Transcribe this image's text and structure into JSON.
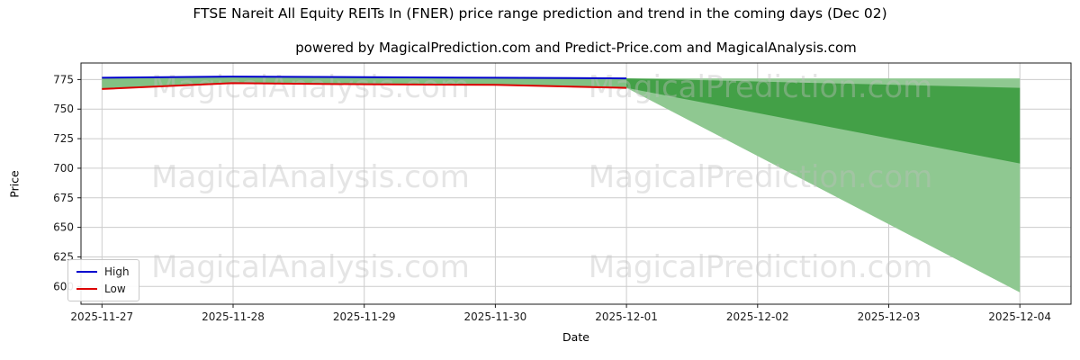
{
  "header": {
    "title": "FTSE Nareit All Equity REITs In (FNER) price range prediction and trend in the coming days (Dec 02)",
    "subtitle": "powered by MagicalPrediction.com and Predict-Price.com and MagicalAnalysis.com"
  },
  "axes": {
    "xlabel": "Date",
    "ylabel": "Price"
  },
  "watermarks": {
    "left_text": "MagicalAnalysis.com",
    "right_text": "MagicalPrediction.com",
    "color": "rgba(190,190,190,0.4)"
  },
  "chart_data": {
    "type": "line",
    "title": "FTSE Nareit All Equity REITs In (FNER) price range prediction and trend in the coming days (Dec 02)",
    "xlabel": "Date",
    "ylabel": "Price",
    "categories": [
      "2025-11-27",
      "2025-11-28",
      "2025-11-29",
      "2025-11-30",
      "2025-12-01",
      "2025-12-02",
      "2025-12-03",
      "2025-12-04"
    ],
    "yticks": [
      600,
      625,
      650,
      675,
      700,
      725,
      750,
      775
    ],
    "ylim": [
      585,
      789
    ],
    "xlim_idx": [
      -0.16,
      7.39
    ],
    "grid": true,
    "grid_color": "#cccccc",
    "spine_color": "#1a1a1a",
    "tick_label_color": "#1a1a1a",
    "legend_position": "lower-left",
    "series": [
      {
        "name": "High",
        "color": "#0000cd",
        "x": [
          0,
          1,
          2,
          3,
          4
        ],
        "values": [
          776.5,
          777.5,
          777,
          776.5,
          776
        ]
      },
      {
        "name": "Low",
        "color": "#dd0000",
        "x": [
          0,
          1,
          2,
          3,
          4
        ],
        "values": [
          767,
          772,
          771,
          770.5,
          768
        ]
      }
    ],
    "bands": [
      {
        "name": "historical-high-low-range",
        "color": "#82c183",
        "opacity": 1,
        "x": [
          0,
          1,
          2,
          3,
          4
        ],
        "upper": [
          776.5,
          777.5,
          777,
          776.5,
          776
        ],
        "lower": [
          767,
          772,
          771,
          770.5,
          768
        ]
      },
      {
        "name": "prediction-range-outer",
        "color": "#8fc891",
        "opacity": 1,
        "x": [
          4,
          7
        ],
        "upper": [
          776,
          776
        ],
        "lower": [
          768,
          595
        ]
      },
      {
        "name": "prediction-range-inner",
        "color": "#3f9e43",
        "opacity": 0.95,
        "x": [
          4,
          7
        ],
        "upper": [
          776,
          768
        ],
        "lower": [
          768,
          704
        ]
      }
    ]
  }
}
